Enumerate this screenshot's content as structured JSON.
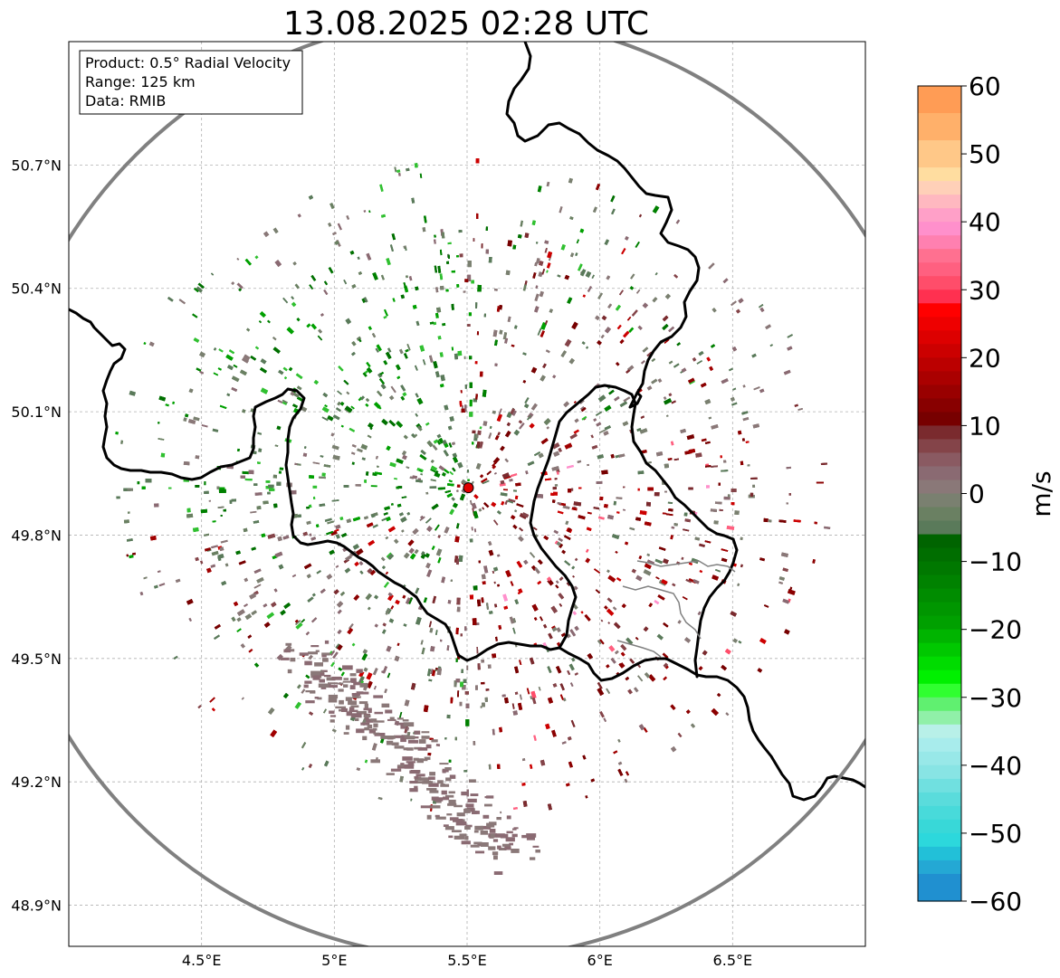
{
  "title": "13.08.2025 02:28 UTC",
  "info_box": {
    "product": "Product: 0.5° Radial Velocity",
    "range": "Range: 125 km",
    "data": "Data: RMIB"
  },
  "map": {
    "lon_range": [
      4.0,
      7.0
    ],
    "lat_range": [
      48.8,
      51.0
    ],
    "radar_site": {
      "lon": 5.505,
      "lat": 49.915
    },
    "range_ring_km": 125,
    "x_ticks": [
      {
        "value": 4.5,
        "label": "4.5°E"
      },
      {
        "value": 5.0,
        "label": "5°E"
      },
      {
        "value": 5.5,
        "label": "5.5°E"
      },
      {
        "value": 6.0,
        "label": "6°E"
      },
      {
        "value": 6.5,
        "label": "6.5°E"
      }
    ],
    "y_ticks": [
      {
        "value": 50.7,
        "label": "50.7°N"
      },
      {
        "value": 50.4,
        "label": "50.4°N"
      },
      {
        "value": 50.1,
        "label": "50.1°N"
      },
      {
        "value": 49.8,
        "label": "49.8°N"
      },
      {
        "value": 49.5,
        "label": "49.5°N"
      },
      {
        "value": 49.2,
        "label": "49.2°N"
      },
      {
        "value": 48.9,
        "label": "48.9°N"
      }
    ],
    "grid": true
  },
  "colorbar": {
    "unit": "m/s",
    "min": -60,
    "max": 60,
    "tick_labels": [
      {
        "value": 60,
        "label": "60"
      },
      {
        "value": 50,
        "label": "50"
      },
      {
        "value": 40,
        "label": "40"
      },
      {
        "value": 30,
        "label": "30"
      },
      {
        "value": 20,
        "label": "20"
      },
      {
        "value": 10,
        "label": "10"
      },
      {
        "value": 0,
        "label": "0"
      },
      {
        "value": -10,
        "label": "−10"
      },
      {
        "value": -20,
        "label": "−20"
      },
      {
        "value": -30,
        "label": "−30"
      },
      {
        "value": -40,
        "label": "−40"
      },
      {
        "value": -50,
        "label": "−50"
      },
      {
        "value": -60,
        "label": "−60"
      }
    ],
    "bands": [
      {
        "from": 56,
        "to": 60,
        "color": "#ff9c55"
      },
      {
        "from": 52,
        "to": 56,
        "color": "#ffb06a"
      },
      {
        "from": 48,
        "to": 52,
        "color": "#ffc888"
      },
      {
        "from": 46,
        "to": 48,
        "color": "#ffdda0"
      },
      {
        "from": 44,
        "to": 46,
        "color": "#ffd0b8"
      },
      {
        "from": 42,
        "to": 44,
        "color": "#ffb8c0"
      },
      {
        "from": 40,
        "to": 42,
        "color": "#ffa0c8"
      },
      {
        "from": 38,
        "to": 40,
        "color": "#ff90cc"
      },
      {
        "from": 36,
        "to": 38,
        "color": "#ff80b0"
      },
      {
        "from": 34,
        "to": 36,
        "color": "#ff7090"
      },
      {
        "from": 32,
        "to": 34,
        "color": "#ff6080"
      },
      {
        "from": 30,
        "to": 32,
        "color": "#ff4d6a"
      },
      {
        "from": 28,
        "to": 30,
        "color": "#ff3050"
      },
      {
        "from": 26,
        "to": 28,
        "color": "#ff0000"
      },
      {
        "from": 24,
        "to": 26,
        "color": "#ee0000"
      },
      {
        "from": 22,
        "to": 24,
        "color": "#dd0000"
      },
      {
        "from": 20,
        "to": 22,
        "color": "#cc0000"
      },
      {
        "from": 18,
        "to": 20,
        "color": "#bb0000"
      },
      {
        "from": 16,
        "to": 18,
        "color": "#aa0000"
      },
      {
        "from": 14,
        "to": 16,
        "color": "#990000"
      },
      {
        "from": 12,
        "to": 14,
        "color": "#880000"
      },
      {
        "from": 10,
        "to": 12,
        "color": "#770000"
      },
      {
        "from": 8,
        "to": 10,
        "color": "#7a2a2e"
      },
      {
        "from": 6,
        "to": 8,
        "color": "#844449"
      },
      {
        "from": 4,
        "to": 6,
        "color": "#8a5a62"
      },
      {
        "from": 2,
        "to": 4,
        "color": "#8a6a72"
      },
      {
        "from": 0,
        "to": 2,
        "color": "#8a7878"
      },
      {
        "from": -2,
        "to": 0,
        "color": "#7a8070"
      },
      {
        "from": -4,
        "to": -2,
        "color": "#6a8062"
      },
      {
        "from": -6,
        "to": -4,
        "color": "#5a7a5a"
      },
      {
        "from": -8,
        "to": -6,
        "color": "#006400"
      },
      {
        "from": -10,
        "to": -8,
        "color": "#006e00"
      },
      {
        "from": -12,
        "to": -10,
        "color": "#007800"
      },
      {
        "from": -14,
        "to": -12,
        "color": "#008200"
      },
      {
        "from": -16,
        "to": -14,
        "color": "#008c00"
      },
      {
        "from": -18,
        "to": -16,
        "color": "#009600"
      },
      {
        "from": -20,
        "to": -18,
        "color": "#00a000"
      },
      {
        "from": -22,
        "to": -20,
        "color": "#00b400"
      },
      {
        "from": -24,
        "to": -22,
        "color": "#00c800"
      },
      {
        "from": -26,
        "to": -24,
        "color": "#00dc00"
      },
      {
        "from": -28,
        "to": -26,
        "color": "#00f000"
      },
      {
        "from": -30,
        "to": -28,
        "color": "#30ff30"
      },
      {
        "from": -32,
        "to": -30,
        "color": "#60f070"
      },
      {
        "from": -34,
        "to": -32,
        "color": "#90f0a8"
      },
      {
        "from": -36,
        "to": -34,
        "color": "#b8f0e8"
      },
      {
        "from": -38,
        "to": -36,
        "color": "#a8ecec"
      },
      {
        "from": -40,
        "to": -38,
        "color": "#98e8e8"
      },
      {
        "from": -42,
        "to": -40,
        "color": "#88e4e4"
      },
      {
        "from": -44,
        "to": -42,
        "color": "#70e0e0"
      },
      {
        "from": -46,
        "to": -44,
        "color": "#5adcdc"
      },
      {
        "from": -48,
        "to": -46,
        "color": "#48dada"
      },
      {
        "from": -50,
        "to": -48,
        "color": "#38d8d8"
      },
      {
        "from": -52,
        "to": -50,
        "color": "#2cd8dc"
      },
      {
        "from": -54,
        "to": -52,
        "color": "#22c0d8"
      },
      {
        "from": -56,
        "to": -54,
        "color": "#24a8d4"
      },
      {
        "from": -60,
        "to": -56,
        "color": "#2090d0"
      }
    ]
  },
  "colors": {
    "ring": "#808080",
    "border": "#000000",
    "radar_marker": "#e00000",
    "inbound_green": "#008000",
    "outbound_red": "#8b0000",
    "near_zero_grey": "#8a7878",
    "near_zero_green": "#5a7a5a"
  }
}
